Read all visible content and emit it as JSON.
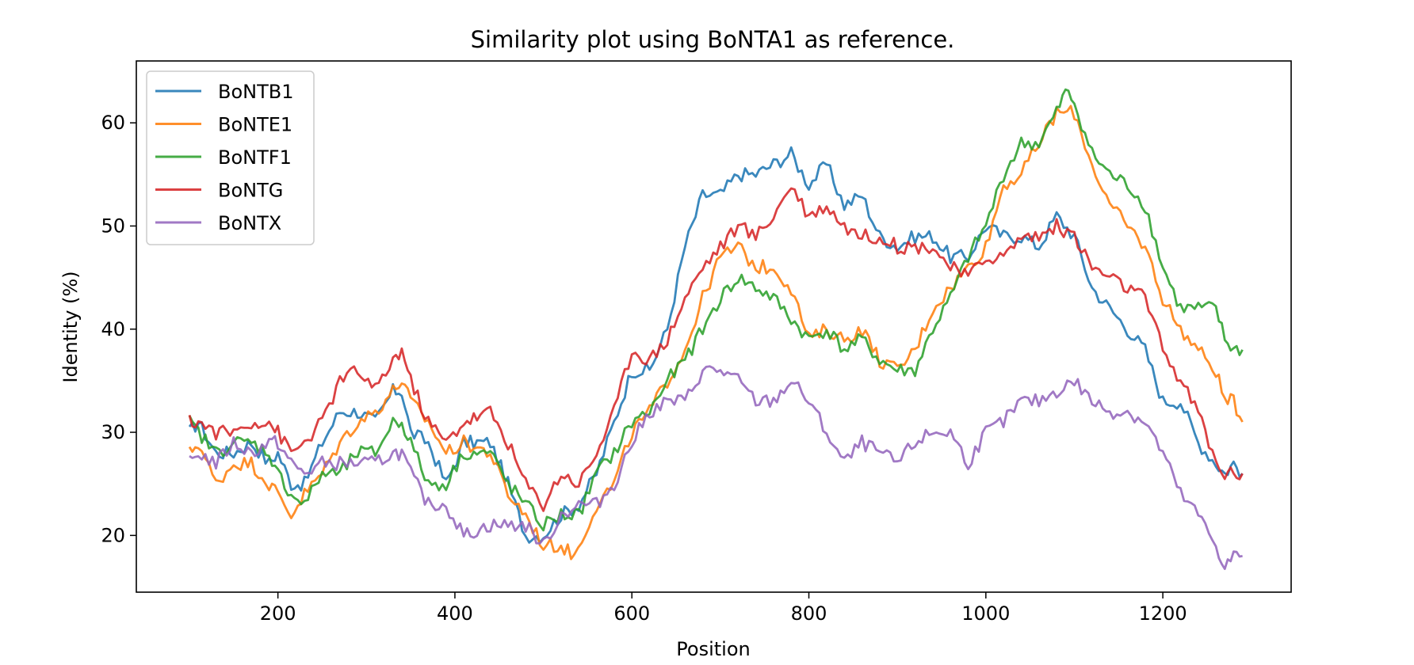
{
  "chart_data": {
    "type": "line",
    "title": "Similarity plot using BoNTA1 as reference.",
    "xlabel": "Position",
    "ylabel": "Identity (%)",
    "xlim": [
      40,
      1345
    ],
    "ylim": [
      14.5,
      66
    ],
    "xticks": [
      200,
      400,
      600,
      800,
      1000,
      1200
    ],
    "yticks": [
      20,
      30,
      40,
      50,
      60
    ],
    "grid": false,
    "legend_position": "top-left",
    "series": [
      {
        "name": "BoNTB1",
        "color": "#1f77b4",
        "points": [
          [
            100,
            30
          ],
          [
            110,
            31
          ],
          [
            130,
            28
          ],
          [
            150,
            28
          ],
          [
            170,
            29
          ],
          [
            190,
            27
          ],
          [
            200,
            28
          ],
          [
            215,
            25
          ],
          [
            230,
            25
          ],
          [
            250,
            29
          ],
          [
            270,
            32
          ],
          [
            290,
            32
          ],
          [
            310,
            31
          ],
          [
            330,
            34
          ],
          [
            340,
            34
          ],
          [
            350,
            30
          ],
          [
            370,
            29
          ],
          [
            390,
            25
          ],
          [
            410,
            29
          ],
          [
            440,
            29
          ],
          [
            460,
            25
          ],
          [
            480,
            20
          ],
          [
            500,
            20
          ],
          [
            520,
            22
          ],
          [
            540,
            23
          ],
          [
            560,
            26
          ],
          [
            580,
            31
          ],
          [
            600,
            36
          ],
          [
            620,
            36
          ],
          [
            640,
            40
          ],
          [
            660,
            48
          ],
          [
            680,
            53
          ],
          [
            700,
            53
          ],
          [
            720,
            55
          ],
          [
            740,
            55
          ],
          [
            760,
            56
          ],
          [
            780,
            57
          ],
          [
            800,
            54
          ],
          [
            820,
            56
          ],
          [
            840,
            52
          ],
          [
            860,
            53
          ],
          [
            880,
            49
          ],
          [
            900,
            48
          ],
          [
            920,
            49
          ],
          [
            940,
            49
          ],
          [
            960,
            47
          ],
          [
            980,
            47
          ],
          [
            1000,
            50
          ],
          [
            1020,
            49
          ],
          [
            1040,
            49
          ],
          [
            1060,
            48
          ],
          [
            1080,
            51
          ],
          [
            1100,
            49
          ],
          [
            1120,
            44
          ],
          [
            1140,
            42
          ],
          [
            1160,
            40
          ],
          [
            1180,
            38
          ],
          [
            1200,
            33
          ],
          [
            1220,
            33
          ],
          [
            1240,
            29
          ],
          [
            1260,
            27
          ],
          [
            1270,
            26
          ],
          [
            1280,
            27
          ],
          [
            1290,
            26
          ]
        ]
      },
      {
        "name": "BoNTE1",
        "color": "#ff7f0e",
        "points": [
          [
            100,
            28
          ],
          [
            110,
            29
          ],
          [
            130,
            25
          ],
          [
            150,
            27
          ],
          [
            170,
            27
          ],
          [
            190,
            25
          ],
          [
            200,
            24
          ],
          [
            215,
            22
          ],
          [
            230,
            24
          ],
          [
            250,
            26
          ],
          [
            270,
            29
          ],
          [
            290,
            31
          ],
          [
            310,
            32
          ],
          [
            330,
            34
          ],
          [
            340,
            35
          ],
          [
            350,
            33
          ],
          [
            370,
            31
          ],
          [
            390,
            28
          ],
          [
            410,
            29
          ],
          [
            440,
            28
          ],
          [
            460,
            24
          ],
          [
            480,
            22
          ],
          [
            500,
            19
          ],
          [
            520,
            19
          ],
          [
            535,
            18
          ],
          [
            560,
            23
          ],
          [
            580,
            25
          ],
          [
            600,
            30
          ],
          [
            620,
            32
          ],
          [
            640,
            35
          ],
          [
            660,
            38
          ],
          [
            680,
            43
          ],
          [
            700,
            47
          ],
          [
            720,
            48
          ],
          [
            740,
            46
          ],
          [
            760,
            46
          ],
          [
            780,
            44
          ],
          [
            800,
            39
          ],
          [
            820,
            40
          ],
          [
            840,
            39
          ],
          [
            860,
            40
          ],
          [
            880,
            37
          ],
          [
            900,
            36
          ],
          [
            920,
            38
          ],
          [
            940,
            42
          ],
          [
            960,
            44
          ],
          [
            980,
            46
          ],
          [
            1000,
            48
          ],
          [
            1020,
            54
          ],
          [
            1040,
            55
          ],
          [
            1060,
            58
          ],
          [
            1080,
            61
          ],
          [
            1100,
            61
          ],
          [
            1120,
            56
          ],
          [
            1140,
            52
          ],
          [
            1160,
            50
          ],
          [
            1180,
            48
          ],
          [
            1200,
            43
          ],
          [
            1220,
            40
          ],
          [
            1240,
            38
          ],
          [
            1260,
            36
          ],
          [
            1270,
            33
          ],
          [
            1280,
            33
          ],
          [
            1290,
            31
          ]
        ]
      },
      {
        "name": "BoNTF1",
        "color": "#2ca02c",
        "points": [
          [
            100,
            31
          ],
          [
            110,
            30
          ],
          [
            130,
            28
          ],
          [
            150,
            29
          ],
          [
            170,
            29
          ],
          [
            190,
            28
          ],
          [
            200,
            26
          ],
          [
            215,
            24
          ],
          [
            230,
            23
          ],
          [
            250,
            26
          ],
          [
            270,
            26
          ],
          [
            290,
            28
          ],
          [
            310,
            28
          ],
          [
            330,
            31
          ],
          [
            340,
            31
          ],
          [
            350,
            29
          ],
          [
            370,
            25
          ],
          [
            390,
            25
          ],
          [
            410,
            28
          ],
          [
            440,
            28
          ],
          [
            460,
            25
          ],
          [
            480,
            23
          ],
          [
            500,
            21
          ],
          [
            520,
            22
          ],
          [
            540,
            22
          ],
          [
            560,
            26
          ],
          [
            580,
            28
          ],
          [
            600,
            31
          ],
          [
            620,
            32
          ],
          [
            640,
            35
          ],
          [
            660,
            37
          ],
          [
            680,
            40
          ],
          [
            700,
            43
          ],
          [
            720,
            45
          ],
          [
            740,
            44
          ],
          [
            760,
            43
          ],
          [
            780,
            41
          ],
          [
            800,
            39
          ],
          [
            820,
            40
          ],
          [
            840,
            38
          ],
          [
            860,
            39
          ],
          [
            880,
            37
          ],
          [
            900,
            36
          ],
          [
            920,
            36
          ],
          [
            940,
            40
          ],
          [
            960,
            43
          ],
          [
            980,
            47
          ],
          [
            1000,
            50
          ],
          [
            1020,
            55
          ],
          [
            1040,
            58
          ],
          [
            1060,
            58
          ],
          [
            1080,
            61
          ],
          [
            1090,
            63
          ],
          [
            1100,
            62
          ],
          [
            1120,
            57
          ],
          [
            1140,
            55
          ],
          [
            1160,
            54
          ],
          [
            1180,
            52
          ],
          [
            1200,
            46
          ],
          [
            1220,
            42
          ],
          [
            1240,
            42
          ],
          [
            1260,
            42
          ],
          [
            1270,
            39
          ],
          [
            1280,
            38
          ],
          [
            1290,
            38
          ]
        ]
      },
      {
        "name": "BoNTG",
        "color": "#d62728",
        "points": [
          [
            100,
            31
          ],
          [
            110,
            31
          ],
          [
            130,
            30
          ],
          [
            150,
            30
          ],
          [
            170,
            31
          ],
          [
            190,
            31
          ],
          [
            200,
            30
          ],
          [
            215,
            28
          ],
          [
            230,
            29
          ],
          [
            250,
            31
          ],
          [
            270,
            35
          ],
          [
            290,
            36
          ],
          [
            310,
            34
          ],
          [
            330,
            37
          ],
          [
            340,
            38
          ],
          [
            350,
            35
          ],
          [
            370,
            31
          ],
          [
            390,
            29
          ],
          [
            410,
            31
          ],
          [
            440,
            32
          ],
          [
            460,
            29
          ],
          [
            480,
            25
          ],
          [
            500,
            23
          ],
          [
            520,
            26
          ],
          [
            540,
            25
          ],
          [
            560,
            28
          ],
          [
            580,
            32
          ],
          [
            600,
            38
          ],
          [
            620,
            37
          ],
          [
            640,
            39
          ],
          [
            660,
            43
          ],
          [
            680,
            46
          ],
          [
            700,
            48
          ],
          [
            720,
            50
          ],
          [
            740,
            49
          ],
          [
            760,
            51
          ],
          [
            780,
            54
          ],
          [
            800,
            51
          ],
          [
            820,
            52
          ],
          [
            840,
            50
          ],
          [
            860,
            49
          ],
          [
            880,
            49
          ],
          [
            900,
            48
          ],
          [
            920,
            48
          ],
          [
            940,
            48
          ],
          [
            960,
            46
          ],
          [
            980,
            45
          ],
          [
            1000,
            47
          ],
          [
            1020,
            47
          ],
          [
            1040,
            49
          ],
          [
            1060,
            49
          ],
          [
            1080,
            50
          ],
          [
            1100,
            49
          ],
          [
            1120,
            46
          ],
          [
            1140,
            45
          ],
          [
            1160,
            44
          ],
          [
            1180,
            43
          ],
          [
            1200,
            38
          ],
          [
            1220,
            35
          ],
          [
            1240,
            32
          ],
          [
            1260,
            27
          ],
          [
            1270,
            26
          ],
          [
            1280,
            26
          ],
          [
            1290,
            26
          ]
        ]
      },
      {
        "name": "BoNTX",
        "color": "#9467bd",
        "points": [
          [
            100,
            27
          ],
          [
            110,
            28
          ],
          [
            130,
            27
          ],
          [
            150,
            29
          ],
          [
            170,
            28
          ],
          [
            190,
            29
          ],
          [
            200,
            29
          ],
          [
            215,
            27
          ],
          [
            230,
            26
          ],
          [
            250,
            27
          ],
          [
            270,
            27
          ],
          [
            290,
            27
          ],
          [
            310,
            27
          ],
          [
            330,
            28
          ],
          [
            340,
            28
          ],
          [
            350,
            26
          ],
          [
            370,
            23
          ],
          [
            390,
            23
          ],
          [
            410,
            20
          ],
          [
            440,
            21
          ],
          [
            460,
            21
          ],
          [
            480,
            21
          ],
          [
            500,
            19
          ],
          [
            520,
            22
          ],
          [
            540,
            23
          ],
          [
            560,
            23
          ],
          [
            580,
            25
          ],
          [
            600,
            29
          ],
          [
            620,
            32
          ],
          [
            640,
            33
          ],
          [
            660,
            33
          ],
          [
            680,
            36
          ],
          [
            700,
            36
          ],
          [
            720,
            35
          ],
          [
            740,
            33
          ],
          [
            760,
            33
          ],
          [
            780,
            35
          ],
          [
            800,
            33
          ],
          [
            820,
            30
          ],
          [
            840,
            27
          ],
          [
            860,
            29
          ],
          [
            880,
            28
          ],
          [
            900,
            27
          ],
          [
            920,
            29
          ],
          [
            940,
            30
          ],
          [
            960,
            30
          ],
          [
            980,
            27
          ],
          [
            1000,
            30
          ],
          [
            1020,
            31
          ],
          [
            1040,
            33
          ],
          [
            1060,
            33
          ],
          [
            1080,
            34
          ],
          [
            1100,
            35
          ],
          [
            1120,
            33
          ],
          [
            1140,
            32
          ],
          [
            1160,
            32
          ],
          [
            1180,
            31
          ],
          [
            1200,
            28
          ],
          [
            1220,
            24
          ],
          [
            1240,
            22
          ],
          [
            1260,
            19
          ],
          [
            1270,
            17
          ],
          [
            1280,
            18
          ],
          [
            1290,
            18
          ]
        ]
      }
    ]
  }
}
